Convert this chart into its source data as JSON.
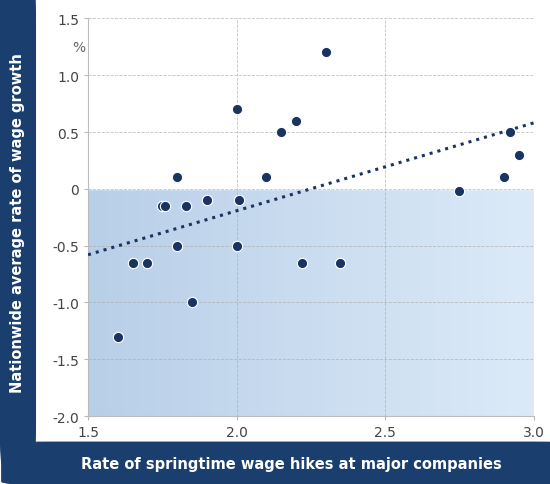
{
  "x_data": [
    1.6,
    1.65,
    1.7,
    1.75,
    1.76,
    1.8,
    1.8,
    1.85,
    1.83,
    1.9,
    2.0,
    2.01,
    2.0,
    2.1,
    2.15,
    2.2,
    2.22,
    2.3,
    2.35,
    2.75,
    2.9,
    2.92,
    2.95
  ],
  "y_data": [
    -1.3,
    -0.65,
    -0.65,
    -0.15,
    -0.15,
    0.1,
    -0.5,
    -1.0,
    -0.15,
    -0.1,
    0.7,
    -0.1,
    -0.5,
    0.1,
    0.5,
    0.6,
    -0.65,
    1.2,
    -0.65,
    -0.02,
    0.1,
    0.5,
    0.3
  ],
  "trendline_x": [
    1.5,
    3.0
  ],
  "trendline_y": [
    -0.58,
    0.58
  ],
  "xlim": [
    1.5,
    3.0
  ],
  "ylim": [
    -2.0,
    1.5
  ],
  "xticks": [
    1.5,
    2.0,
    2.5,
    3.0
  ],
  "yticks": [
    -2.0,
    -1.5,
    -1.0,
    -0.5,
    0.0,
    0.5,
    1.0,
    1.5
  ],
  "xlabel": "Rate of springtime wage hikes at major companies",
  "ylabel": "Nationwide average rate of wage growth",
  "dot_color": "#1a3462",
  "trendline_color": "#1a3462",
  "bg_below_zero_left": "#b8cfe8",
  "bg_below_zero_right": "#ddeaf8",
  "bg_above_zero": "#ffffff",
  "xlabel_bg": "#1a3f6f",
  "label_text_color": "#ffffff",
  "grid_color": "#aaaaaa",
  "xlabel_fontsize": 10.5,
  "ylabel_fontsize": 10.5,
  "tick_fontsize": 10,
  "pct_fontsize": 10,
  "dot_size": 55,
  "dot_edgecolor": "#ffffff",
  "dot_linewidth": 0.8,
  "pct_x_pos": 2.75,
  "pct_y_pos": 1.25
}
